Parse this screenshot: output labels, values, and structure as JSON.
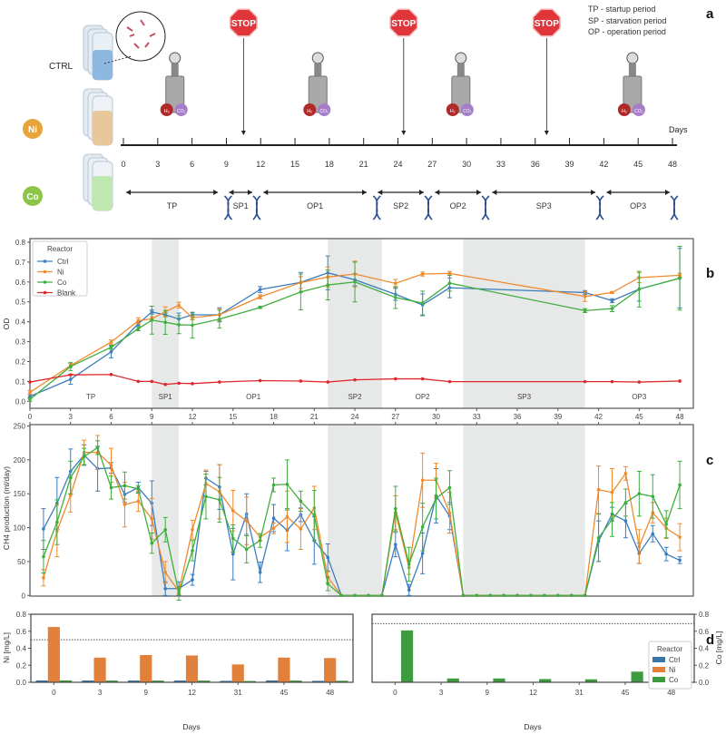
{
  "panels": {
    "a": "a",
    "b": "b",
    "c": "c",
    "d": "d"
  },
  "schematic": {
    "legend_lines": [
      "TP - startup period",
      "SP - starvation period",
      "OP - operation period"
    ],
    "bottles": [
      {
        "label": "CTRL",
        "color": "#8fb8e0"
      },
      {
        "label": "Ni",
        "color": "#e8c89a",
        "badge_color": "#e8a33a"
      },
      {
        "label": "Co",
        "color": "#bfe8b0",
        "badge_color": "#8cc54a"
      }
    ],
    "stop_label": "STOP",
    "stop_days": [
      10.5,
      24.5,
      37
    ],
    "reactor_days": [
      4.5,
      17,
      29.5,
      44.5
    ],
    "gas_labels": [
      "H₂",
      "CO₂"
    ],
    "days_label": "Days",
    "timeline_ticks": [
      "0",
      "3",
      "6",
      "9",
      "12",
      "15",
      "18",
      "21",
      "24",
      "27",
      "30",
      "33",
      "36",
      "39",
      "42",
      "45",
      "48"
    ],
    "periods": [
      {
        "label": "TP",
        "start": 0,
        "end": 8.5
      },
      {
        "label": "SP1",
        "start": 9,
        "end": 11.5
      },
      {
        "label": "OP1",
        "start": 12,
        "end": 21.5
      },
      {
        "label": "SP2",
        "start": 22,
        "end": 26.5
      },
      {
        "label": "OP2",
        "start": 27,
        "end": 31.5
      },
      {
        "label": "SP3",
        "start": 32,
        "end": 41.5
      },
      {
        "label": "OP3",
        "start": 42,
        "end": 48
      }
    ],
    "dna_days": [
      9,
      11.5,
      22,
      26.5,
      31.5,
      41.5,
      48
    ]
  },
  "chart_data": [
    {
      "id": "b",
      "type": "line",
      "ylabel": "OD",
      "xlim": [
        0,
        49
      ],
      "ylim": [
        -0.035,
        0.818
      ],
      "yticks": [
        "0.0",
        "0.1",
        "0.2",
        "0.3",
        "0.4",
        "0.5",
        "0.6",
        "0.7",
        "0.8"
      ],
      "xticks": [
        "0",
        "3",
        "6",
        "9",
        "12",
        "15",
        "18",
        "21",
        "24",
        "27",
        "30",
        "33",
        "36",
        "39",
        "42",
        "45",
        "48"
      ],
      "shaded": [
        [
          9,
          11
        ],
        [
          22,
          26
        ],
        [
          32,
          41
        ]
      ],
      "period_labels": [
        {
          "label": "TP",
          "x": 4.5
        },
        {
          "label": "SP1",
          "x": 10
        },
        {
          "label": "OP1",
          "x": 16.5
        },
        {
          "label": "SP2",
          "x": 24
        },
        {
          "label": "OP2",
          "x": 29
        },
        {
          "label": "SP3",
          "x": 36.5
        },
        {
          "label": "OP3",
          "x": 45
        }
      ],
      "legend": {
        "title": "Reactor",
        "position": "top-left"
      },
      "x": [
        0,
        3,
        6,
        8,
        9,
        10,
        11,
        12,
        14,
        17,
        20,
        22,
        24,
        27,
        29,
        31,
        41,
        43,
        45,
        48
      ],
      "series": [
        {
          "name": "Ctrl",
          "color": "#3a7dbf",
          "values": [
            0.025,
            0.111,
            0.249,
            0.39,
            0.449,
            0.435,
            0.414,
            0.435,
            0.435,
            0.562,
            0.598,
            0.646,
            0.611,
            0.538,
            0.485,
            0.571,
            0.547,
            0.506,
            0.564,
            0.619
          ],
          "err": [
            0.01,
            0.025,
            0.03,
            0.01,
            0.01,
            0.01,
            0.03,
            0.01,
            0.035,
            0.015,
            0.05,
            0.085,
            0.03,
            0.03,
            0.055,
            0.05,
            0.01,
            0.01,
            0.06,
            0.15
          ]
        },
        {
          "name": "Ni",
          "color": "#f08a2c",
          "values": [
            0.045,
            0.18,
            0.298,
            0.405,
            0.415,
            0.45,
            0.483,
            0.42,
            0.435,
            0.525,
            0.597,
            0.625,
            0.64,
            0.593,
            0.64,
            0.643,
            0.527,
            0.547,
            0.622,
            0.634
          ],
          "err": [
            0.01,
            0.01,
            0.01,
            0.015,
            0.01,
            0.025,
            0.015,
            0.01,
            0.03,
            0.01,
            0.03,
            0.05,
            0.065,
            0.02,
            0.01,
            0.01,
            0.025,
            0.005,
            0.025,
            0.01
          ]
        },
        {
          "name": "Co",
          "color": "#3fae3f",
          "values": [
            0.01,
            0.175,
            0.272,
            0.365,
            0.408,
            0.397,
            0.385,
            0.383,
            0.413,
            0.472,
            0.55,
            0.585,
            0.6,
            0.522,
            0.494,
            0.594,
            0.456,
            0.466,
            0.564,
            0.619
          ],
          "err": [
            0.01,
            0.02,
            0.01,
            0.01,
            0.07,
            0.06,
            0.045,
            0.065,
            0.045,
            0.005,
            0.09,
            0.075,
            0.1,
            0.055,
            0.06,
            0.04,
            0.01,
            0.015,
            0.09,
            0.16
          ]
        },
        {
          "name": "Blank",
          "color": "#e0282c",
          "values": [
            0.097,
            0.133,
            0.135,
            0.1,
            0.1,
            0.085,
            0.091,
            0.089,
            0.097,
            0.104,
            0.102,
            0.097,
            0.108,
            0.113,
            0.113,
            0.099,
            0.099,
            0.099,
            0.097,
            0.102
          ],
          "err": null
        }
      ]
    },
    {
      "id": "c",
      "type": "line",
      "ylabel": "CH4 production (ml/day)",
      "xlim": [
        0,
        49
      ],
      "ylim": [
        -1,
        252
      ],
      "yticks": [
        "0",
        "50",
        "100",
        "150",
        "200",
        "250"
      ],
      "shaded": [
        [
          9,
          11
        ],
        [
          22,
          26
        ],
        [
          32,
          41
        ]
      ],
      "x": [
        1,
        2,
        3,
        4,
        5,
        6,
        7,
        8,
        9,
        10,
        11,
        12,
        13,
        14,
        15,
        16,
        17,
        18,
        19,
        20,
        21,
        22,
        23,
        24,
        25,
        26,
        27,
        28,
        29,
        30,
        31,
        32,
        33,
        34,
        35,
        36,
        37,
        38,
        39,
        40,
        41,
        42,
        43,
        44,
        45,
        46,
        47,
        48
      ],
      "series": [
        {
          "name": "Ctrl",
          "color": "#3a7dbf",
          "values": [
            98,
            136,
            183,
            207,
            187,
            188,
            149,
            159,
            136,
            10,
            10,
            23,
            173,
            160,
            61,
            120,
            34,
            114,
            96,
            119,
            81,
            56,
            0,
            0,
            0,
            0,
            75,
            8,
            62,
            147,
            117,
            0,
            0,
            0,
            0,
            0,
            0,
            0,
            0,
            0,
            0,
            80,
            120,
            110,
            62,
            91,
            61,
            52
          ],
          "err": [
            30,
            38,
            33,
            15,
            33,
            8,
            12,
            8,
            33,
            10,
            10,
            8,
            10,
            33,
            38,
            30,
            15,
            20,
            30,
            10,
            35,
            20,
            0,
            0,
            0,
            0,
            18,
            8,
            30,
            40,
            20,
            0,
            0,
            0,
            0,
            0,
            0,
            0,
            0,
            0,
            0,
            30,
            10,
            25,
            15,
            12,
            10,
            5
          ]
        },
        {
          "name": "Ni",
          "color": "#f08a2c",
          "values": [
            26,
            95,
            148,
            211,
            211,
            192,
            134,
            139,
            113,
            34,
            6,
            97,
            165,
            153,
            125,
            110,
            86,
            99,
            116,
            98,
            129,
            27,
            0,
            0,
            0,
            0,
            122,
            41,
            170,
            170,
            122,
            0,
            0,
            0,
            0,
            0,
            0,
            0,
            0,
            0,
            0,
            156,
            152,
            180,
            72,
            122,
            99,
            86
          ],
          "err": [
            12,
            38,
            25,
            18,
            25,
            25,
            33,
            15,
            30,
            16,
            5,
            14,
            20,
            40,
            30,
            35,
            5,
            8,
            38,
            30,
            32,
            8,
            0,
            0,
            0,
            0,
            25,
            10,
            40,
            25,
            30,
            0,
            0,
            0,
            0,
            0,
            0,
            0,
            0,
            0,
            0,
            35,
            35,
            10,
            25,
            15,
            15,
            20
          ]
        },
        {
          "name": "Co",
          "color": "#3fae3f",
          "values": [
            57,
            108,
            174,
            205,
            218,
            159,
            162,
            157,
            77,
            97,
            3,
            66,
            146,
            141,
            84,
            68,
            81,
            163,
            164,
            139,
            118,
            17,
            0,
            0,
            0,
            0,
            128,
            46,
            101,
            143,
            159,
            0,
            0,
            0,
            0,
            0,
            0,
            0,
            0,
            0,
            0,
            85,
            112,
            137,
            150,
            146,
            105,
            163
          ],
          "err": [
            24,
            33,
            24,
            12,
            10,
            17,
            20,
            5,
            15,
            18,
            10,
            15,
            33,
            33,
            20,
            20,
            10,
            10,
            36,
            15,
            37,
            10,
            0,
            0,
            0,
            0,
            33,
            25,
            35,
            30,
            25,
            0,
            0,
            0,
            0,
            0,
            0,
            0,
            0,
            0,
            0,
            35,
            25,
            20,
            33,
            32,
            20,
            35
          ]
        }
      ]
    },
    {
      "id": "d-ni",
      "type": "bar",
      "xlabel": "Days",
      "ylabel": "Ni [mg/L]",
      "ylim": [
        0,
        0.8
      ],
      "yticks": [
        "0.0",
        "0.2",
        "0.4",
        "0.6",
        "0.8"
      ],
      "categories": [
        "0",
        "3",
        "9",
        "12",
        "31",
        "45",
        "48"
      ],
      "reference_line": 0.5,
      "series": [
        {
          "name": "Ctrl",
          "color": "#3a75a8",
          "values": [
            0.022,
            0.021,
            0.021,
            0.021,
            0.017,
            0.022,
            0.017
          ]
        },
        {
          "name": "Ni",
          "color": "#e0803a",
          "values": [
            0.65,
            0.29,
            0.32,
            0.315,
            0.21,
            0.29,
            0.285
          ]
        },
        {
          "name": "Co",
          "color": "#3e9a3e",
          "values": [
            0.022,
            0.02,
            0.02,
            0.02,
            0.015,
            0.02,
            0.018
          ]
        }
      ]
    },
    {
      "id": "d-co",
      "type": "bar",
      "xlabel": "Days",
      "ylabel": "Co [mg/L]",
      "ylim": [
        0,
        0.8
      ],
      "yticks": [
        "0.0",
        "0.2",
        "0.4",
        "0.6",
        "0.8"
      ],
      "categories": [
        "0",
        "3",
        "9",
        "12",
        "31",
        "45",
        "48"
      ],
      "reference_line": 0.69,
      "legend": {
        "title": "Reactor",
        "position": "right"
      },
      "series": [
        {
          "name": "Ctrl",
          "color": "#3a75a8",
          "values": [
            0.005,
            0.002,
            0.001,
            0.001,
            0.001,
            0.002,
            0.001
          ]
        },
        {
          "name": "Ni",
          "color": "#e0803a",
          "values": [
            0.006,
            0.001,
            0.001,
            0.001,
            0.001,
            0.001,
            0.001
          ]
        },
        {
          "name": "Co",
          "color": "#3e9a3e",
          "values": [
            0.61,
            0.045,
            0.045,
            0.038,
            0.035,
            0.125,
            0.12
          ]
        }
      ]
    }
  ]
}
